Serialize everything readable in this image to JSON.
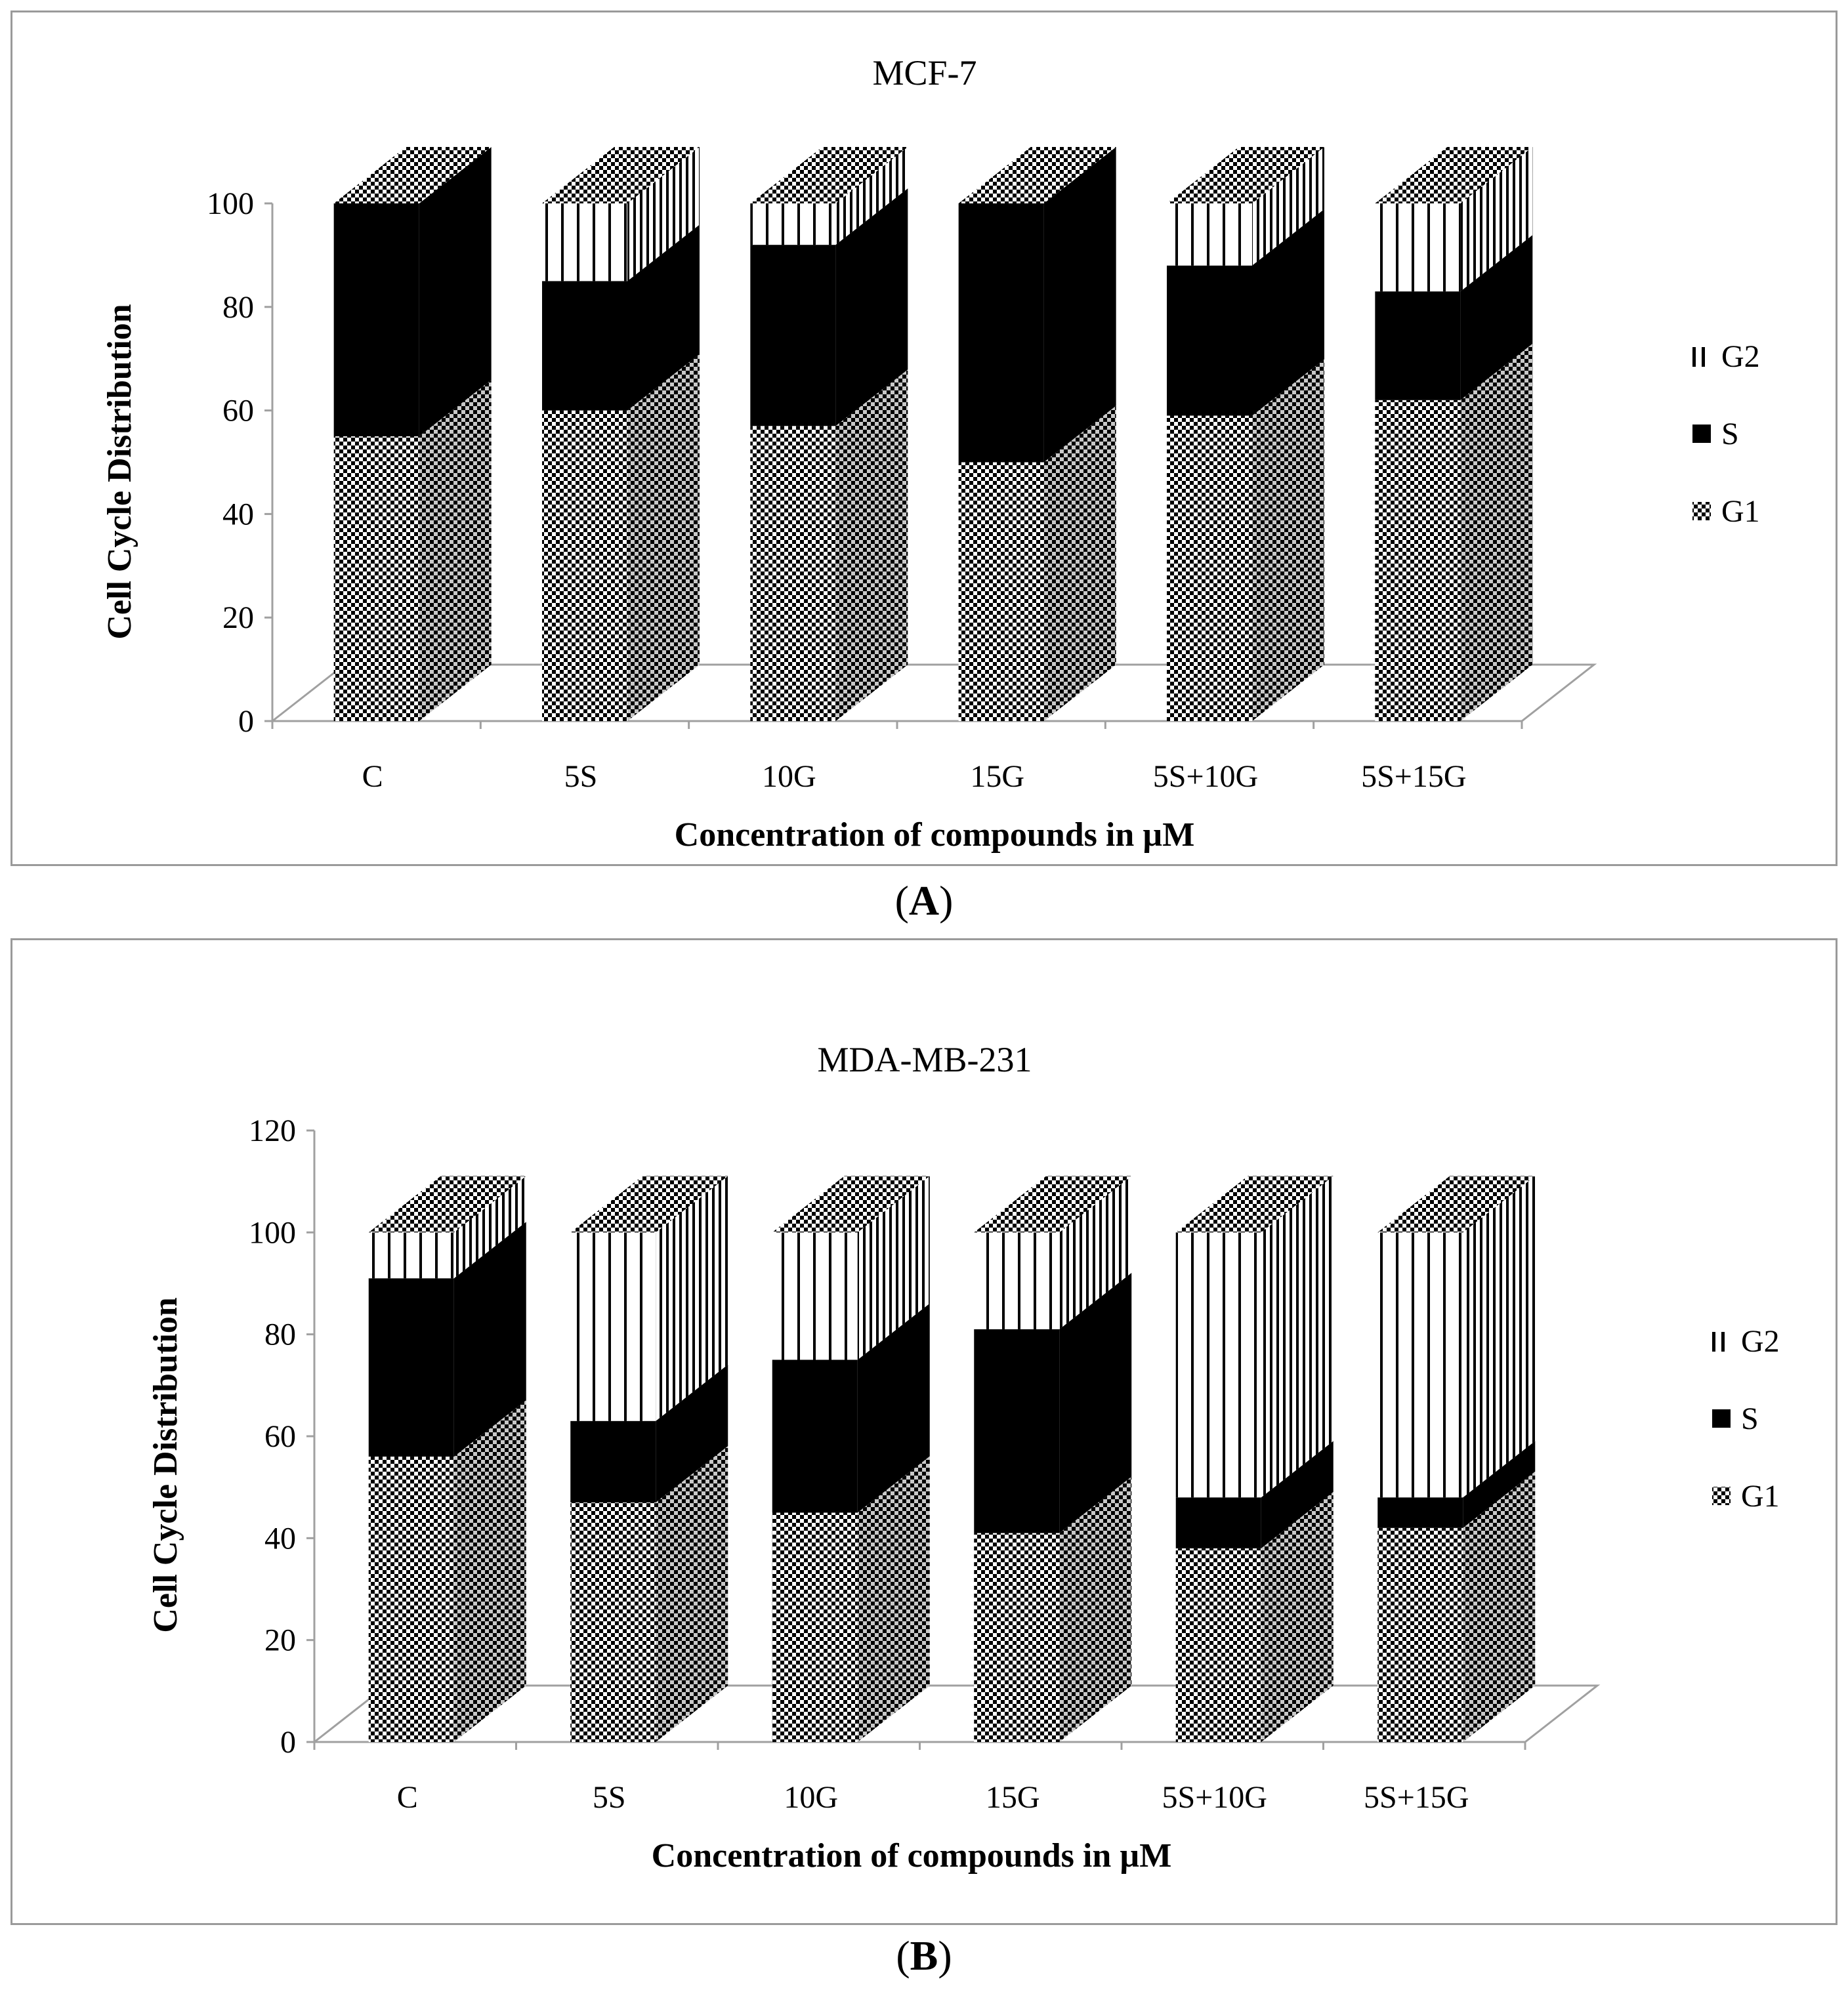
{
  "figure_labels": [
    {
      "open": "(",
      "letter": "A",
      "close": ")"
    },
    {
      "open": "(",
      "letter": "B",
      "close": ")"
    }
  ],
  "colors": {
    "G1": "checkerboard-pattern",
    "S": "#000000",
    "G2": "vertical-stripe-pattern",
    "frame": "#9a9a9a",
    "floor": "#a0a0a0"
  },
  "chart_data": [
    {
      "type": "bar",
      "stacked": true,
      "style": "3d",
      "title": "MCF-7",
      "xlabel": "Concentration of compounds in µM",
      "ylabel": "Cell Cycle Distribution",
      "ylim": [
        0,
        100
      ],
      "yticks": [
        "0",
        "20",
        "40",
        "60",
        "80",
        "100"
      ],
      "categories": [
        "C",
        "5S",
        "10G",
        "15G",
        "5S+10G",
        "5S+15G"
      ],
      "series": [
        {
          "name": "G1",
          "values": [
            55,
            60,
            57,
            50,
            59,
            62
          ]
        },
        {
          "name": "S",
          "values": [
            45,
            25,
            35,
            50,
            29,
            21
          ]
        },
        {
          "name": "G2",
          "values": [
            0,
            15,
            8,
            0,
            12,
            17
          ]
        }
      ],
      "legend": {
        "position": "right",
        "entries": [
          {
            "marker": "‖",
            "label": "G2"
          },
          {
            "marker": "■",
            "label": "S"
          },
          {
            "marker": "⁙",
            "label": "G1"
          }
        ]
      }
    },
    {
      "type": "bar",
      "stacked": true,
      "style": "3d",
      "title": "MDA-MB-231",
      "xlabel": "Concentration of compounds in µM",
      "ylabel": "Cell Cycle Distribution",
      "ylim": [
        0,
        120
      ],
      "yticks": [
        "0",
        "20",
        "40",
        "60",
        "80",
        "100",
        "120"
      ],
      "categories": [
        "C",
        "5S",
        "10G",
        "15G",
        "5S+10G",
        "5S+15G"
      ],
      "series": [
        {
          "name": "G1",
          "values": [
            56,
            47,
            45,
            41,
            38,
            42
          ]
        },
        {
          "name": "S",
          "values": [
            35,
            16,
            30,
            40,
            10,
            6
          ]
        },
        {
          "name": "G2",
          "values": [
            9,
            37,
            25,
            19,
            52,
            52
          ]
        }
      ],
      "legend": {
        "position": "right",
        "entries": [
          {
            "marker": "‖",
            "label": "G2"
          },
          {
            "marker": "■",
            "label": "S"
          },
          {
            "marker": "⁙",
            "label": "G1"
          }
        ]
      }
    }
  ]
}
